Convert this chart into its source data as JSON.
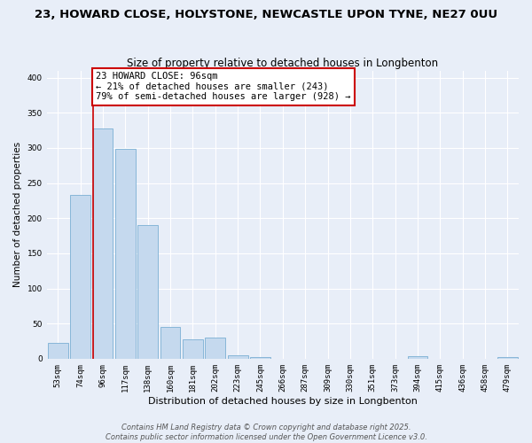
{
  "title": "23, HOWARD CLOSE, HOLYSTONE, NEWCASTLE UPON TYNE, NE27 0UU",
  "subtitle": "Size of property relative to detached houses in Longbenton",
  "xlabel": "Distribution of detached houses by size in Longbenton",
  "ylabel": "Number of detached properties",
  "bins": [
    "53sqm",
    "74sqm",
    "96sqm",
    "117sqm",
    "138sqm",
    "160sqm",
    "181sqm",
    "202sqm",
    "223sqm",
    "245sqm",
    "266sqm",
    "287sqm",
    "309sqm",
    "330sqm",
    "351sqm",
    "373sqm",
    "394sqm",
    "415sqm",
    "436sqm",
    "458sqm",
    "479sqm"
  ],
  "values": [
    23,
    233,
    328,
    298,
    190,
    45,
    28,
    30,
    5,
    2,
    0,
    0,
    0,
    0,
    0,
    0,
    3,
    0,
    0,
    0,
    2
  ],
  "bar_color": "#c5d9ee",
  "bar_edge_color": "#7aafd4",
  "highlight_bin_index": 2,
  "highlight_line_color": "#cc0000",
  "annotation_text": "23 HOWARD CLOSE: 96sqm\n← 21% of detached houses are smaller (243)\n79% of semi-detached houses are larger (928) →",
  "annotation_box_color": "#ffffff",
  "annotation_box_edge_color": "#cc0000",
  "ylim": [
    0,
    410
  ],
  "yticks": [
    0,
    50,
    100,
    150,
    200,
    250,
    300,
    350,
    400
  ],
  "footer_line1": "Contains HM Land Registry data © Crown copyright and database right 2025.",
  "footer_line2": "Contains public sector information licensed under the Open Government Licence v3.0.",
  "background_color": "#e8eef8",
  "grid_color": "#ffffff",
  "title_fontsize": 9.5,
  "subtitle_fontsize": 8.5,
  "xlabel_fontsize": 8,
  "ylabel_fontsize": 7.5,
  "tick_fontsize": 6.5,
  "annotation_fontsize": 7.5,
  "footer_fontsize": 6
}
